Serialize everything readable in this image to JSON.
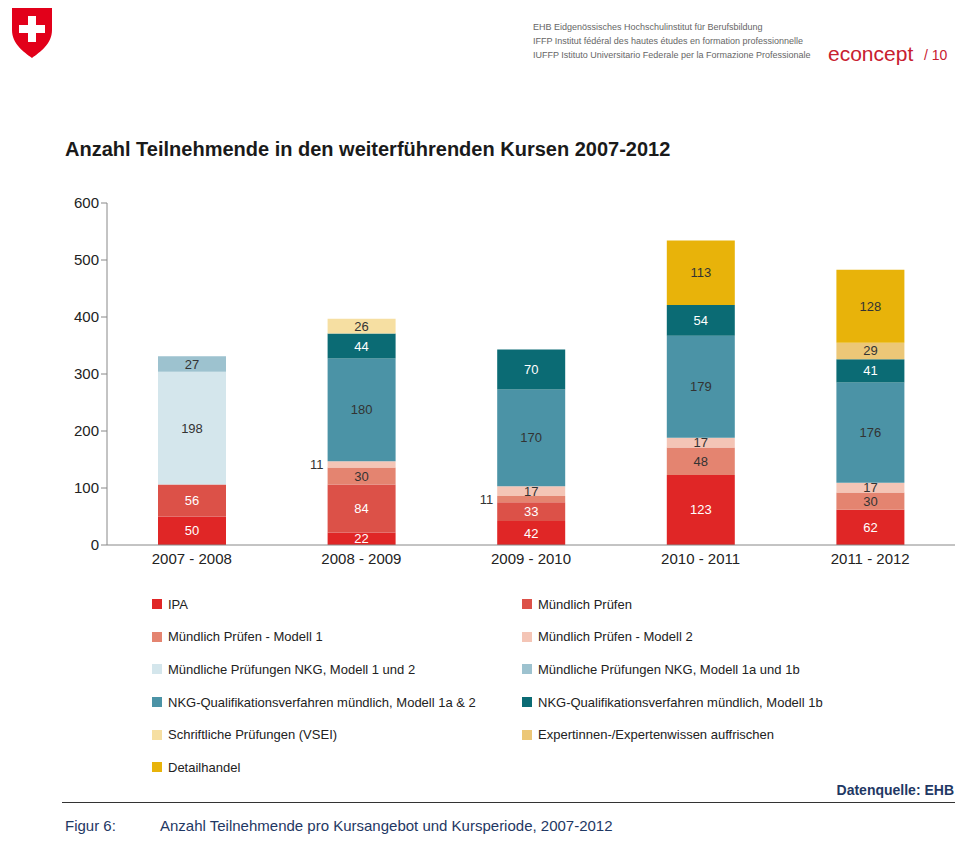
{
  "chart_data": {
    "type": "bar",
    "title": "Anzahl Teilnehmende in den weiterführenden Kursen 2007-2012",
    "annotations": [
      "EHB Eidgenössisches Hochschulinstitut für Berufsbildung",
      "IFFP Institut fédéral des hautes études en formation professionnelle",
      "IUFFP Istituto Universitario Federale per la Formazione Professionale",
      "econcept",
      "/ 10",
      "Datenquelle: EHB",
      "Figur 6:",
      "Anzahl Teilnehmende pro Kursangebot und Kursperiode, 2007-2012"
    ],
    "categories": [
      "2007 - 2008",
      "2008 - 2009",
      "2009 - 2010",
      "2010 - 2011",
      "2011 - 2012"
    ],
    "series": [
      {
        "name": "IPA",
        "color": "#e02626",
        "values": [
          50,
          22,
          42,
          123,
          62
        ]
      },
      {
        "name": "Mündlich Prüfen",
        "color": "#dc5148",
        "values": [
          56,
          84,
          33,
          null,
          null
        ]
      },
      {
        "name": "Mündlich Prüfen - Modell 1",
        "color": "#e48470",
        "values": [
          null,
          30,
          11,
          48,
          30
        ]
      },
      {
        "name": "Mündlich Prüfen - Modell 2",
        "color": "#f4c5b6",
        "values": [
          null,
          11,
          17,
          17,
          17
        ]
      },
      {
        "name": "Mündliche Prüfungen NKG, Modell 1 und 2",
        "color": "#d4e6ec",
        "values": [
          198,
          null,
          null,
          null,
          null
        ]
      },
      {
        "name": "Mündliche Prüfungen NKG, Modell 1a und 1b",
        "color": "#9dc2cf",
        "values": [
          27,
          null,
          null,
          null,
          null
        ]
      },
      {
        "name": "NKG-Qualifikationsverfahren mündlich, Modell 1a & 2",
        "color": "#4b93a6",
        "values": [
          null,
          180,
          170,
          179,
          176
        ]
      },
      {
        "name": "NKG-Qualifikationsverfahren mündlich, Modell 1b",
        "color": "#0b6b74",
        "values": [
          null,
          44,
          70,
          54,
          41
        ]
      },
      {
        "name": "Schriftliche Prüfungen (VSEI)",
        "color": "#f6dfa2",
        "values": [
          null,
          26,
          null,
          null,
          null
        ]
      },
      {
        "name": "Expertinnen-/Expertenwissen auffrischen",
        "color": "#ecc777",
        "values": [
          null,
          null,
          null,
          null,
          29
        ]
      },
      {
        "name": "Detailhandel",
        "color": "#e8b30a",
        "values": [
          null,
          null,
          null,
          113,
          128
        ]
      }
    ],
    "ylim": [
      0,
      600
    ],
    "yticks": [
      0,
      100,
      200,
      300,
      400,
      500,
      600
    ],
    "stacked": true,
    "data_labels": true,
    "grid": false,
    "legend": "bottom"
  }
}
